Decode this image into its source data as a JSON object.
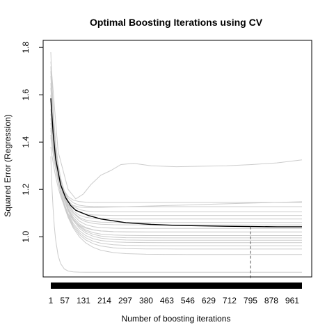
{
  "chart_data": {
    "type": "line",
    "title": "Optimal Boosting Iterations using CV",
    "xlabel": "Number of boosting iterations",
    "ylabel": "Squared Error (Regression)",
    "xlim": [
      1,
      1000
    ],
    "ylim": [
      0.83,
      1.83
    ],
    "x_ticks": [
      1,
      57,
      131,
      214,
      297,
      380,
      463,
      546,
      629,
      712,
      795,
      878,
      961
    ],
    "y_ticks": [
      1.0,
      1.2,
      1.4,
      1.6,
      1.8
    ],
    "y_tick_labels": [
      "1.0",
      "1.2",
      "1.4",
      "1.6",
      "1.8"
    ],
    "optimal_iteration": 795,
    "grid": false,
    "legend": "none",
    "colors": {
      "mean": "#000000",
      "folds": "#cccccc",
      "optimal_line": "#555555",
      "rug": "#000000"
    },
    "mean_curve": [
      {
        "x": 1,
        "y": 1.585
      },
      {
        "x": 10,
        "y": 1.44
      },
      {
        "x": 20,
        "y": 1.33
      },
      {
        "x": 40,
        "y": 1.22
      },
      {
        "x": 60,
        "y": 1.165
      },
      {
        "x": 80,
        "y": 1.132
      },
      {
        "x": 100,
        "y": 1.112
      },
      {
        "x": 150,
        "y": 1.09
      },
      {
        "x": 200,
        "y": 1.075
      },
      {
        "x": 300,
        "y": 1.059
      },
      {
        "x": 400,
        "y": 1.052
      },
      {
        "x": 500,
        "y": 1.048
      },
      {
        "x": 600,
        "y": 1.046
      },
      {
        "x": 700,
        "y": 1.044
      },
      {
        "x": 800,
        "y": 1.043
      },
      {
        "x": 900,
        "y": 1.042
      },
      {
        "x": 1000,
        "y": 1.042
      }
    ],
    "fold_curves": [
      {
        "start": 1.78,
        "floor": 1.118,
        "k": 22,
        "drift": 0.03
      },
      {
        "start": 1.72,
        "floor": 1.145,
        "k": 22,
        "drift": 0.0
      },
      {
        "start": 1.7,
        "floor": 1.127,
        "k": 25,
        "drift": 0.0
      },
      {
        "start": 1.68,
        "floor": 1.105,
        "k": 28,
        "drift": 0.0
      },
      {
        "start": 1.65,
        "floor": 1.09,
        "k": 30,
        "drift": 0.0
      },
      {
        "start": 1.63,
        "floor": 1.075,
        "k": 32,
        "drift": 0.0
      },
      {
        "start": 1.6,
        "floor": 1.06,
        "k": 35,
        "drift": 0.0
      },
      {
        "start": 1.58,
        "floor": 1.05,
        "k": 38,
        "drift": 0.0
      },
      {
        "start": 1.56,
        "floor": 1.035,
        "k": 40,
        "drift": 0.0
      },
      {
        "start": 1.54,
        "floor": 1.02,
        "k": 42,
        "drift": 0.0
      },
      {
        "start": 1.52,
        "floor": 1.005,
        "k": 45,
        "drift": 0.0
      },
      {
        "start": 1.5,
        "floor": 0.995,
        "k": 48,
        "drift": 0.0
      },
      {
        "start": 1.48,
        "floor": 0.985,
        "k": 50,
        "drift": 0.0
      },
      {
        "start": 1.46,
        "floor": 0.975,
        "k": 50,
        "drift": 0.0
      },
      {
        "start": 1.45,
        "floor": 0.962,
        "k": 52,
        "drift": 0.0
      },
      {
        "start": 1.43,
        "floor": 0.948,
        "k": 55,
        "drift": 0.0
      },
      {
        "start": 1.42,
        "floor": 0.925,
        "k": 60,
        "drift": 0.0
      },
      {
        "start": 1.38,
        "floor": 1.02,
        "k": 45,
        "drift": 0.0
      },
      {
        "start": 1.34,
        "floor": 0.85,
        "k": 15,
        "drift": 0.0
      }
    ],
    "rising_fold_curve": [
      {
        "x": 1,
        "y": 1.74
      },
      {
        "x": 30,
        "y": 1.36
      },
      {
        "x": 70,
        "y": 1.2
      },
      {
        "x": 100,
        "y": 1.16
      },
      {
        "x": 130,
        "y": 1.18
      },
      {
        "x": 160,
        "y": 1.22
      },
      {
        "x": 200,
        "y": 1.26
      },
      {
        "x": 240,
        "y": 1.28
      },
      {
        "x": 280,
        "y": 1.305
      },
      {
        "x": 330,
        "y": 1.31
      },
      {
        "x": 400,
        "y": 1.3
      },
      {
        "x": 500,
        "y": 1.296
      },
      {
        "x": 600,
        "y": 1.298
      },
      {
        "x": 700,
        "y": 1.3
      },
      {
        "x": 800,
        "y": 1.305
      },
      {
        "x": 900,
        "y": 1.312
      },
      {
        "x": 1000,
        "y": 1.325
      }
    ]
  }
}
